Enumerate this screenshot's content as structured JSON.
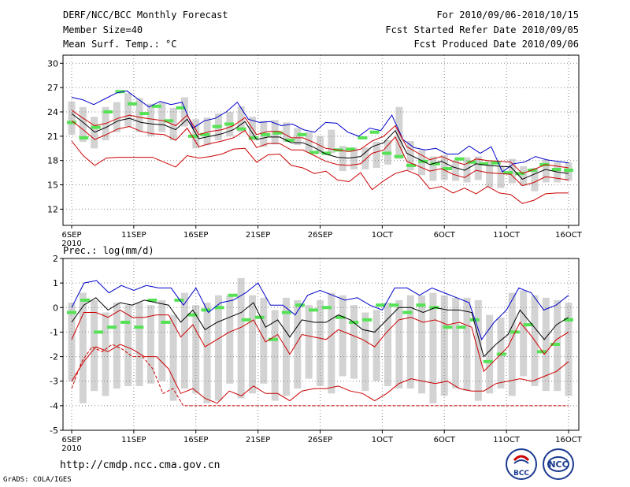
{
  "header": {
    "title": "DERF/NCC/BCC Monthly Forecast",
    "member_size": "Member Size=40",
    "variable": "Mean Surf. Temp.: °C",
    "period": "For 2010/09/06-2010/10/15",
    "start_date": "Fcst Started Refer Date 2010/09/05",
    "produced_date": "Fcst Produced Date 2010/09/06"
  },
  "footer": {
    "url": "http://cmdp.ncc.cma.gov.cn",
    "credit": "GrADS: COLA/IGES",
    "logo_bcc": "BCC",
    "logo_ncc": "NCC"
  },
  "colors": {
    "box": "#d3d3d3",
    "green": "#55e255",
    "max": "#0000cc",
    "min": "#cc0000",
    "mean": "#000000",
    "grid": "#888888"
  },
  "chart_data": [
    {
      "type": "line",
      "title": "Mean Surf. Temp.: °C",
      "ylim": [
        10,
        31
      ],
      "yticks": [
        12,
        15,
        18,
        21,
        24,
        27,
        30
      ],
      "x_tick_labels": [
        "6SEP\n2010",
        "11SEP",
        "16SEP",
        "21SEP",
        "26SEP",
        "1OCT",
        "6OCT",
        "11OCT",
        "16OCT"
      ],
      "days": 40,
      "box_low": [
        21.2,
        20.3,
        19.5,
        20.5,
        21.5,
        22.2,
        21.5,
        21,
        21.5,
        20.5,
        22.2,
        19.5,
        19.9,
        20.5,
        21,
        21.5,
        20.5,
        19.7,
        20,
        20.3,
        19.9,
        19.1,
        18.9,
        18.9,
        16.7,
        16.9,
        16.9,
        17.1,
        17.5,
        18.2,
        16.8,
        16.2,
        15.5,
        15.6,
        15.5,
        15.3,
        15.6,
        14.7,
        14.6,
        15.2,
        14.9,
        14.2,
        15.3,
        15.3,
        15.5
      ],
      "box_high": [
        25.3,
        24.6,
        23.4,
        24.6,
        25.2,
        26.3,
        25.7,
        25,
        25.2,
        24.5,
        25.8,
        23.1,
        23.3,
        23.8,
        24,
        24.7,
        23.4,
        22.9,
        23,
        22.7,
        22,
        21.5,
        21,
        21.8,
        19.8,
        19.6,
        19.6,
        20.3,
        20.5,
        24.6,
        20.4,
        19.3,
        18.5,
        18.7,
        18,
        18.4,
        18.5,
        18,
        17.3,
        18.2,
        17.3,
        17.1,
        18.1,
        17.8,
        17.8
      ],
      "green_marks": [
        22.7,
        20.8,
        22.1,
        24,
        26.5,
        25,
        23.8,
        24.7,
        22.9,
        24.5,
        21,
        21.2,
        22.2,
        22.5,
        21.9,
        20.8,
        21.2,
        21.4,
        20.5,
        21.2,
        19,
        18.9,
        19.3,
        19.4,
        20.8,
        21.5,
        18.9,
        18.5,
        17.4,
        17.9,
        17.6,
        17,
        18.2,
        17.8,
        17.6,
        17.7,
        16.5,
        16.4,
        16.8,
        17.5,
        16.9,
        16.8
      ],
      "series": [
        {
          "name": "max",
          "values": [
            25.8,
            25.5,
            24.9,
            25.6,
            26.3,
            26.6,
            25.6,
            24.6,
            25.3,
            24.9,
            25.2,
            22,
            22.9,
            23.2,
            24,
            25.2,
            23.1,
            22.7,
            22.8,
            22.3,
            22.5,
            21.8,
            21.5,
            22.7,
            22.6,
            21.5,
            21,
            22,
            21.7,
            23.6,
            20.6,
            19.6,
            19.3,
            19.5,
            18.8,
            18.8,
            19.8,
            18.9,
            19.7,
            16.6,
            17.6,
            17.8,
            18.5,
            18.1,
            17.9,
            17.7
          ]
        },
        {
          "name": "mean",
          "values": [
            23.8,
            22.7,
            21.5,
            22.1,
            22.9,
            23.2,
            22.7,
            22.5,
            22.4,
            21.8,
            23.1,
            20.7,
            21,
            21.3,
            21.8,
            22.8,
            20.6,
            20.9,
            20.9,
            20.2,
            20.2,
            19.6,
            18.8,
            18.4,
            18.3,
            18.5,
            19.7,
            20.2,
            21.7,
            18.9,
            18.2,
            17.5,
            17.9,
            17.2,
            16.8,
            17.6,
            17.4,
            17.3,
            17.2,
            15.7,
            16.3,
            16.9,
            16.6,
            16.4
          ]
        },
        {
          "name": "min",
          "values": [
            20.4,
            18.6,
            17.4,
            18.3,
            18.4,
            18.4,
            18.4,
            18.4,
            17.8,
            17.2,
            18.6,
            18.3,
            18.5,
            18.8,
            19.4,
            19.5,
            17.8,
            18.7,
            18.8,
            17.4,
            17.1,
            16.4,
            16.7,
            15.6,
            15.4,
            16.5,
            14.4,
            15.5,
            16.4,
            16.8,
            16.2,
            14.5,
            14.8,
            14,
            14.6,
            13.9,
            14.8,
            14,
            13.8,
            12.7,
            13.1,
            13.9,
            14,
            14
          ]
        },
        {
          "name": "upper",
          "values": [
            24.2,
            23.2,
            22.3,
            22.6,
            23.2,
            23.6,
            23.3,
            23.1,
            22.9,
            22.3,
            23.6,
            21.2,
            21.6,
            21.8,
            22.3,
            23.3,
            21.2,
            21.6,
            21.6,
            20.8,
            20.8,
            20.2,
            19.5,
            19.3,
            19.1,
            19.4,
            20.4,
            21,
            22.3,
            19.7,
            18.9,
            18.1,
            18.5,
            17.9,
            17.5,
            18.2,
            18,
            17.9,
            17.8,
            16.4,
            16.9,
            17.5,
            17.3,
            17.1
          ]
        },
        {
          "name": "lower",
          "values": [
            22.9,
            21.8,
            20.6,
            21.2,
            21.9,
            22.2,
            21.6,
            21.3,
            21.2,
            20.5,
            22,
            19.7,
            20.1,
            20.4,
            20.8,
            21.7,
            19.6,
            20.1,
            20.1,
            19.3,
            19.3,
            18.6,
            17.9,
            17.5,
            17.4,
            17.6,
            18.9,
            19.3,
            20.9,
            17.9,
            17.3,
            16.7,
            17,
            16.3,
            15.9,
            16.8,
            16.5,
            16.4,
            16.3,
            14.9,
            15.3,
            16,
            15.8,
            15.6
          ]
        }
      ]
    },
    {
      "type": "line",
      "title": "Prec.: log(mm/d)",
      "ylim": [
        -5,
        2
      ],
      "yticks": [
        -5,
        -4,
        -3,
        -2,
        -1,
        0,
        1,
        2
      ],
      "x_tick_labels": [
        "6SEP\n2010",
        "11SEP",
        "16SEP",
        "21SEP",
        "26SEP",
        "1OCT",
        "6OCT",
        "11OCT",
        "16OCT"
      ],
      "box_low": [
        -3,
        -3.9,
        -3.4,
        -3.6,
        -3.3,
        -3.2,
        -3.2,
        -3.1,
        -3,
        -3.8,
        -3.3,
        -3.5,
        -3.9,
        -3.8,
        -3.1,
        -3.7,
        -3.5,
        -3.1,
        -3.8,
        -3.6,
        -3.3,
        -2.9,
        -3.2,
        -3.5,
        -2.8,
        -2.9,
        -3.4,
        -3,
        -3.2,
        -3.3,
        -3.3,
        -3.5,
        -3.9,
        -3.6,
        -3.3,
        -3.4,
        -3.8,
        -3.5,
        -3.3,
        -3.6,
        -2.8,
        -3.2,
        -3.4,
        -3.4,
        -3.6
      ],
      "box_high": [
        0.2,
        0.6,
        0.3,
        -0.2,
        0.2,
        0.1,
        0.2,
        0.1,
        0.3,
        -0.3,
        0.6,
        0.1,
        0.2,
        0.5,
        0.5,
        1.2,
        0.5,
        0.4,
        -0.1,
        0.4,
        0.3,
        0.1,
        0.3,
        0.6,
        0.5,
        0.1,
        -0.2,
        -0.1,
        0.2,
        0.3,
        0.5,
        0.5,
        0.6,
        0.5,
        0.4,
        0.4,
        0.3,
        -0.3,
        -0.4,
        0.6,
        0.7,
        0.5,
        0.4,
        0.3,
        0.2
      ],
      "green_marks": [
        -0.2,
        0.3,
        -1,
        -0.8,
        -0.6,
        -0.8,
        0.3,
        -0.6,
        0.3,
        -0.3,
        -0.1,
        0,
        0.5,
        -0.5,
        -0.4,
        -1.3,
        -0.2,
        0.1,
        -0.1,
        0,
        -0.4,
        -0.6,
        -0.5,
        0.1,
        0.1,
        -0.2,
        0.1,
        0,
        -0.8,
        -0.8,
        -0.5,
        -2.2,
        -1.9,
        -1,
        -0.7,
        -1.8,
        -1.5,
        -0.5
      ],
      "series": [
        {
          "name": "max",
          "values": [
            0,
            1,
            1.1,
            0.6,
            0.9,
            0.7,
            0.9,
            0.8,
            0.8,
            0.1,
            0.8,
            -0.2,
            0.2,
            0.3,
            0.6,
            1,
            0.1,
            0.1,
            -0.3,
            0.5,
            0.7,
            0.5,
            0.3,
            0.4,
            0.1,
            -0.1,
            0.8,
            0.8,
            0.5,
            0.8,
            0.6,
            0.4,
            0.2,
            -1.3,
            -0.6,
            -0.1,
            0.8,
            0.6,
            -0.1,
            0.1,
            0.5
          ]
        },
        {
          "name": "mean",
          "values": [
            -0.6,
            0.1,
            0.4,
            -0.1,
            0.2,
            0.1,
            0.3,
            0.2,
            0.1,
            -0.6,
            -0.1,
            -0.9,
            -0.6,
            -0.4,
            -0.2,
            0.2,
            -0.8,
            -0.5,
            -1.2,
            -0.5,
            -0.6,
            -0.6,
            -0.3,
            -0.5,
            -0.9,
            -1,
            -0.5,
            0,
            0,
            -0.2,
            0,
            -0.1,
            -0.1,
            -0.2,
            -2,
            -1.5,
            -1.1,
            -0.1,
            -0.7,
            -1.3,
            -0.7,
            -0.4
          ]
        },
        {
          "name": "min",
          "values": [
            -3.3,
            -2.2,
            -1.6,
            -1.8,
            -1.5,
            -1.7,
            -2,
            -2,
            -2.5,
            -3.5,
            -3.3,
            -4,
            -4,
            -4,
            -4,
            -4,
            -4,
            -4,
            -4,
            -4,
            -4,
            -4,
            -4,
            -4,
            -4,
            -4,
            -4,
            -4,
            -4,
            -4,
            -4,
            -4,
            -4,
            -4,
            -4,
            -4,
            -4,
            -4,
            -4,
            -4,
            -4,
            -4,
            -4,
            -4,
            -4,
            -4,
            -4,
            -4,
            -4,
            -4
          ]
        },
        {
          "name": "upper",
          "values": [
            -1.3,
            -0.2,
            -0.2,
            -0.4,
            -0.1,
            -0.4,
            -0.4,
            -0.3,
            -0.3,
            -1.2,
            -0.7,
            -1.6,
            -1.3,
            -1,
            -0.8,
            -0.5,
            -1.4,
            -1.1,
            -1.9,
            -1.1,
            -1.2,
            -1.3,
            -0.9,
            -1.1,
            -1.3,
            -1.6,
            -1,
            -0.5,
            -0.4,
            -0.6,
            -0.5,
            -0.7,
            -0.6,
            -0.8,
            -2.6,
            -2.1,
            -1.6,
            -0.6,
            -1.2,
            -1.9,
            -1.3,
            -1
          ]
        },
        {
          "name": "lower",
          "values": [
            -3,
            -2.2,
            -1.6,
            -1.8,
            -1.5,
            -1.7,
            -2,
            -2,
            -2.5,
            -3.5,
            -3.3,
            -3.7,
            -3.9,
            -3.4,
            -3.6,
            -3.2,
            -3.5,
            -3.5,
            -3.8,
            -3.4,
            -3.3,
            -3.3,
            -3.2,
            -3.4,
            -3.5,
            -3.8,
            -3.5,
            -3.1,
            -2.9,
            -3,
            -3.1,
            -3,
            -3.3,
            -3.4,
            -3.4,
            -3.1,
            -3,
            -2.9,
            -3,
            -2.8,
            -2.6,
            -2.2
          ]
        }
      ]
    }
  ]
}
